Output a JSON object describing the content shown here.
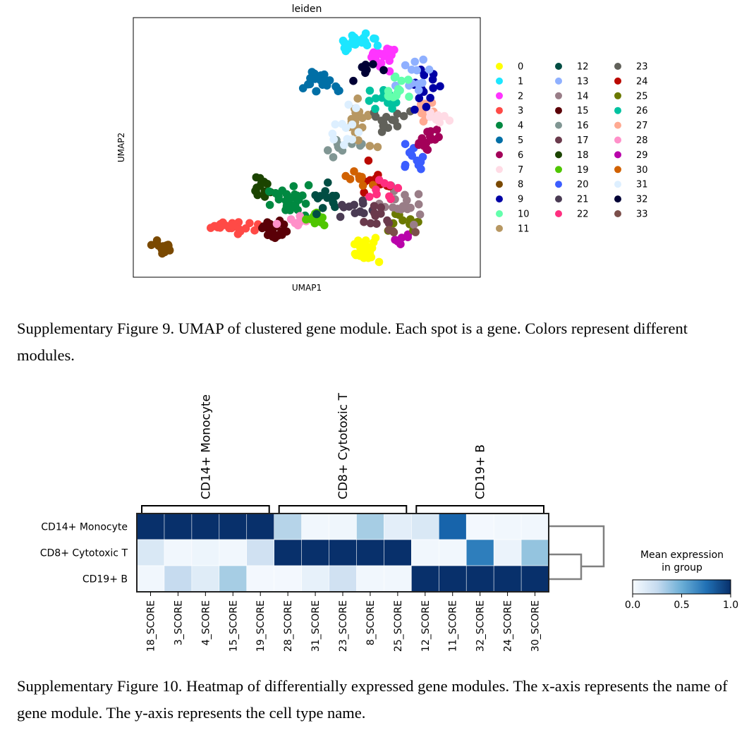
{
  "figure9": {
    "caption": "Supplementary Figure 9. UMAP of clustered gene module. Each spot is a gene. Colors represent different modules.",
    "chart_data": {
      "type": "scatter",
      "title": "leiden",
      "xlabel": "UMAP1",
      "ylabel": "UMAP2",
      "grid": false,
      "legend_position": "right",
      "legend": [
        {
          "label": "0",
          "color": "#ffff00"
        },
        {
          "label": "1",
          "color": "#1ce6ff"
        },
        {
          "label": "2",
          "color": "#ff34ff"
        },
        {
          "label": "3",
          "color": "#ff4a46"
        },
        {
          "label": "4",
          "color": "#008941"
        },
        {
          "label": "5",
          "color": "#006fa6"
        },
        {
          "label": "6",
          "color": "#a30059"
        },
        {
          "label": "7",
          "color": "#ffdbe5"
        },
        {
          "label": "8",
          "color": "#7a4900"
        },
        {
          "label": "9",
          "color": "#0000a6"
        },
        {
          "label": "10",
          "color": "#63ffac"
        },
        {
          "label": "11",
          "color": "#b79762"
        },
        {
          "label": "12",
          "color": "#004d43"
        },
        {
          "label": "13",
          "color": "#8fb0ff"
        },
        {
          "label": "14",
          "color": "#997d87"
        },
        {
          "label": "15",
          "color": "#5a0007"
        },
        {
          "label": "16",
          "color": "#809693"
        },
        {
          "label": "17",
          "color": "#6a3a4c"
        },
        {
          "label": "18",
          "color": "#1b4400"
        },
        {
          "label": "19",
          "color": "#4fc601"
        },
        {
          "label": "20",
          "color": "#3b5dff"
        },
        {
          "label": "21",
          "color": "#4a3b53"
        },
        {
          "label": "22",
          "color": "#ff2f80"
        },
        {
          "label": "23",
          "color": "#61615a"
        },
        {
          "label": "24",
          "color": "#ba0900"
        },
        {
          "label": "25",
          "color": "#6b7900"
        },
        {
          "label": "26",
          "color": "#00c2a0"
        },
        {
          "label": "27",
          "color": "#ffaa92"
        },
        {
          "label": "28",
          "color": "#ff90c9"
        },
        {
          "label": "29",
          "color": "#b903aa"
        },
        {
          "label": "30",
          "color": "#d16100"
        },
        {
          "label": "31",
          "color": "#ddefff"
        },
        {
          "label": "32",
          "color": "#000035"
        },
        {
          "label": "33",
          "color": "#7b4f4b"
        }
      ],
      "clusters": [
        {
          "c": 8,
          "x": 1.0,
          "y": 1.9,
          "sx": 0.22,
          "sy": 0.18,
          "n": 22
        },
        {
          "c": 3,
          "x": 3.1,
          "y": 2.7,
          "sx": 0.62,
          "sy": 0.18,
          "n": 22
        },
        {
          "c": 15,
          "x": 4.7,
          "y": 2.6,
          "sx": 0.34,
          "sy": 0.22,
          "n": 22
        },
        {
          "c": 18,
          "x": 4.1,
          "y": 4.1,
          "sx": 0.28,
          "sy": 0.35,
          "n": 13
        },
        {
          "c": 4,
          "x": 5.2,
          "y": 3.8,
          "sx": 0.48,
          "sy": 0.38,
          "n": 26
        },
        {
          "c": 28,
          "x": 5.3,
          "y": 2.9,
          "sx": 0.32,
          "sy": 0.12,
          "n": 8
        },
        {
          "c": 19,
          "x": 6.0,
          "y": 3.0,
          "sx": 0.38,
          "sy": 0.2,
          "n": 14
        },
        {
          "c": 12,
          "x": 6.3,
          "y": 3.8,
          "sx": 0.36,
          "sy": 0.38,
          "n": 13
        },
        {
          "c": 0,
          "x": 7.7,
          "y": 1.8,
          "sx": 0.34,
          "sy": 0.28,
          "n": 28
        },
        {
          "c": 29,
          "x": 8.9,
          "y": 2.1,
          "sx": 0.32,
          "sy": 0.22,
          "n": 7
        },
        {
          "c": 25,
          "x": 8.8,
          "y": 2.9,
          "sx": 0.38,
          "sy": 0.3,
          "n": 10
        },
        {
          "c": 14,
          "x": 9.0,
          "y": 3.5,
          "sx": 0.52,
          "sy": 0.42,
          "n": 20
        },
        {
          "c": 21,
          "x": 7.3,
          "y": 3.4,
          "sx": 0.45,
          "sy": 0.32,
          "n": 12
        },
        {
          "c": 17,
          "x": 8.0,
          "y": 3.1,
          "sx": 0.42,
          "sy": 0.26,
          "n": 10
        },
        {
          "c": 24,
          "x": 7.9,
          "y": 4.4,
          "sx": 0.48,
          "sy": 0.5,
          "n": 9
        },
        {
          "c": 30,
          "x": 7.4,
          "y": 4.6,
          "sx": 0.4,
          "sy": 0.32,
          "n": 9
        },
        {
          "c": 22,
          "x": 8.3,
          "y": 4.1,
          "sx": 0.5,
          "sy": 0.32,
          "n": 9
        },
        {
          "c": 16,
          "x": 6.9,
          "y": 5.6,
          "sx": 0.4,
          "sy": 0.4,
          "n": 10
        },
        {
          "c": 11,
          "x": 7.4,
          "y": 6.6,
          "sx": 0.42,
          "sy": 0.62,
          "n": 18
        },
        {
          "c": 31,
          "x": 6.9,
          "y": 6.5,
          "sx": 0.4,
          "sy": 0.55,
          "n": 12
        },
        {
          "c": 23,
          "x": 8.2,
          "y": 6.6,
          "sx": 0.52,
          "sy": 0.42,
          "n": 14
        },
        {
          "c": 26,
          "x": 8.2,
          "y": 7.5,
          "sx": 0.45,
          "sy": 0.32,
          "n": 12
        },
        {
          "c": 20,
          "x": 9.1,
          "y": 5.2,
          "sx": 0.32,
          "sy": 0.45,
          "n": 12
        },
        {
          "c": 6,
          "x": 9.6,
          "y": 5.9,
          "sx": 0.34,
          "sy": 0.42,
          "n": 16
        },
        {
          "c": 27,
          "x": 9.8,
          "y": 7.0,
          "sx": 0.3,
          "sy": 0.35,
          "n": 12
        },
        {
          "c": 7,
          "x": 10.0,
          "y": 6.8,
          "sx": 0.22,
          "sy": 0.25,
          "n": 8
        },
        {
          "c": 9,
          "x": 9.6,
          "y": 7.9,
          "sx": 0.42,
          "sy": 0.58,
          "n": 14
        },
        {
          "c": 13,
          "x": 9.3,
          "y": 8.4,
          "sx": 0.42,
          "sy": 0.45,
          "n": 12
        },
        {
          "c": 10,
          "x": 8.6,
          "y": 8.0,
          "sx": 0.42,
          "sy": 0.38,
          "n": 14
        },
        {
          "c": 2,
          "x": 8.2,
          "y": 9.1,
          "sx": 0.38,
          "sy": 0.36,
          "n": 20
        },
        {
          "c": 1,
          "x": 7.3,
          "y": 9.7,
          "sx": 0.45,
          "sy": 0.22,
          "n": 22
        },
        {
          "c": 32,
          "x": 7.6,
          "y": 8.5,
          "sx": 0.4,
          "sy": 0.38,
          "n": 8
        },
        {
          "c": 5,
          "x": 6.3,
          "y": 8.2,
          "sx": 0.52,
          "sy": 0.32,
          "n": 24
        },
        {
          "c": 33,
          "x": 8.9,
          "y": 2.6,
          "sx": 0.3,
          "sy": 0.2,
          "n": 4
        }
      ]
    }
  },
  "figure10": {
    "caption": "Supplementary Figure 10. Heatmap of differentially expressed gene modules. The x-axis represents the name of gene module. The y-axis represents the cell type name.",
    "chart_data": {
      "type": "heatmap",
      "group_labels": [
        "CD14+ Monocyte",
        "CD8+ Cytotoxic T",
        "CD19+ B"
      ],
      "row_labels": [
        "CD14+ Monocyte",
        "CD8+ Cytotoxic T",
        "CD19+ B"
      ],
      "column_labels": [
        "18_SCORE",
        "3_SCORE",
        "4_SCORE",
        "15_SCORE",
        "19_SCORE",
        "28_SCORE",
        "31_SCORE",
        "23_SCORE",
        "8_SCORE",
        "25_SCORE",
        "12_SCORE",
        "11_SCORE",
        "32_SCORE",
        "24_SCORE",
        "30_SCORE"
      ],
      "values": [
        [
          1.0,
          1.0,
          1.0,
          1.0,
          1.0,
          0.3,
          0.03,
          0.04,
          0.35,
          0.1,
          0.15,
          0.8,
          0.02,
          0.03,
          0.03
        ],
        [
          0.15,
          0.03,
          0.05,
          0.03,
          0.2,
          1.0,
          1.0,
          1.0,
          1.0,
          1.0,
          0.03,
          0.03,
          0.7,
          0.06,
          0.4
        ],
        [
          0.03,
          0.25,
          0.12,
          0.35,
          0.02,
          0.02,
          0.08,
          0.2,
          0.03,
          0.03,
          1.0,
          1.0,
          1.0,
          1.0,
          1.0
        ]
      ],
      "colorbar": {
        "title_line1": "Mean expression",
        "title_line2": "in group",
        "ticks": [
          "0.0",
          "0.5",
          "1.0"
        ],
        "vmin": 0.0,
        "vmax": 1.0,
        "cmap": "Blues"
      }
    }
  }
}
